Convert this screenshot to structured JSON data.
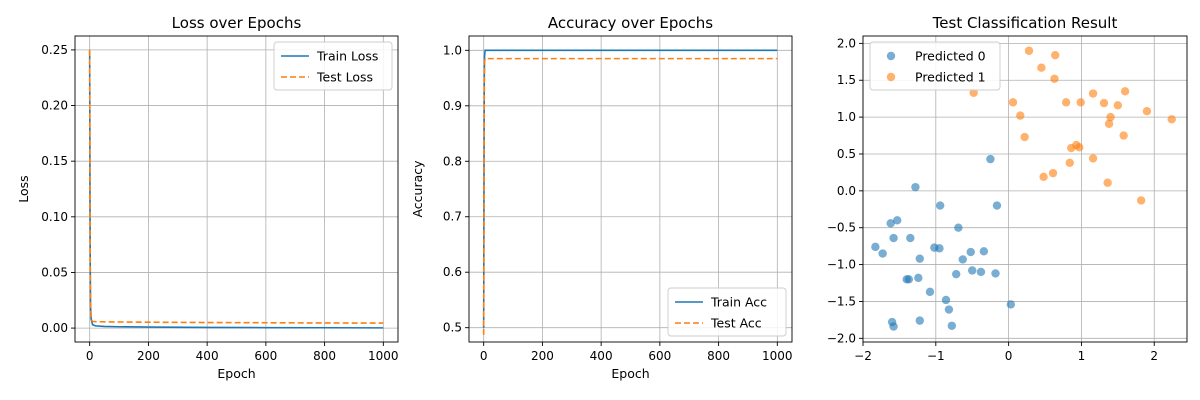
{
  "colors": {
    "blue": "#1f77b4",
    "orange": "#ff7f0e",
    "grid": "#b0b0b0"
  },
  "chart_data": [
    {
      "type": "line",
      "title": "Loss over Epochs",
      "xlabel": "Epoch",
      "ylabel": "Loss",
      "xlim": [
        -50,
        1050
      ],
      "ylim": [
        -0.0125,
        0.2625
      ],
      "xticks": [
        0,
        200,
        400,
        600,
        800,
        1000
      ],
      "yticks": [
        0.0,
        0.05,
        0.1,
        0.15,
        0.2,
        0.25
      ],
      "xtick_labels": [
        "0",
        "200",
        "400",
        "600",
        "800",
        "1000"
      ],
      "ytick_labels": [
        "0.00",
        "0.05",
        "0.10",
        "0.15",
        "0.20",
        "0.25"
      ],
      "grid": true,
      "legend": "top-right",
      "series": [
        {
          "name": "Train Loss",
          "style": "solid",
          "color": "#1f77b4",
          "x": [
            0,
            1,
            2,
            3,
            5,
            10,
            20,
            50,
            100,
            200,
            400,
            600,
            800,
            1000
          ],
          "y": [
            0.25,
            0.12,
            0.05,
            0.02,
            0.008,
            0.003,
            0.002,
            0.0015,
            0.0012,
            0.0009,
            0.0006,
            0.0004,
            0.0003,
            0.0002
          ]
        },
        {
          "name": "Test Loss",
          "style": "dashed",
          "color": "#ff7f0e",
          "x": [
            0,
            1,
            2,
            3,
            5,
            10,
            20,
            50,
            100,
            200,
            400,
            600,
            800,
            1000
          ],
          "y": [
            0.25,
            0.12,
            0.05,
            0.02,
            0.008,
            0.006,
            0.0058,
            0.0056,
            0.0055,
            0.0053,
            0.005,
            0.0048,
            0.0046,
            0.0045
          ]
        }
      ]
    },
    {
      "type": "line",
      "title": "Accuracy over Epochs",
      "xlabel": "Epoch",
      "ylabel": "Accuracy",
      "xlim": [
        -50,
        1050
      ],
      "ylim": [
        0.4742,
        1.0258
      ],
      "xticks": [
        0,
        200,
        400,
        600,
        800,
        1000
      ],
      "yticks": [
        0.5,
        0.6,
        0.7,
        0.8,
        0.9,
        1.0
      ],
      "xtick_labels": [
        "0",
        "200",
        "400",
        "600",
        "800",
        "1000"
      ],
      "ytick_labels": [
        "0.5",
        "0.6",
        "0.7",
        "0.8",
        "0.9",
        "1.0"
      ],
      "grid": true,
      "legend": "bottom-right",
      "series": [
        {
          "name": "Train Acc",
          "style": "solid",
          "color": "#1f77b4",
          "x": [
            0,
            1,
            2,
            3,
            5,
            10,
            1000
          ],
          "y": [
            0.5,
            0.75,
            0.95,
            0.99,
            1.0,
            1.0,
            1.0
          ]
        },
        {
          "name": "Test Acc",
          "style": "dashed",
          "color": "#ff7f0e",
          "x": [
            0,
            1,
            2,
            3,
            5,
            10,
            1000
          ],
          "y": [
            0.487,
            0.7,
            0.93,
            0.98,
            0.985,
            0.985,
            0.985
          ]
        }
      ]
    },
    {
      "type": "scatter",
      "title": "Test Classification Result",
      "xlim": [
        -2.0,
        2.45
      ],
      "ylim": [
        -2.05,
        2.1
      ],
      "xticks": [
        -2,
        -1,
        0,
        1,
        2
      ],
      "yticks": [
        -2.0,
        -1.5,
        -1.0,
        -0.5,
        0.0,
        0.5,
        1.0,
        1.5,
        2.0
      ],
      "xtick_labels": [
        "−2",
        "−1",
        "0",
        "1",
        "2"
      ],
      "ytick_labels": [
        "−2.0",
        "−1.5",
        "−1.0",
        "−0.5",
        "0.0",
        "0.5",
        "1.0",
        "1.5",
        "2.0"
      ],
      "grid": true,
      "legend": "top-left",
      "series": [
        {
          "name": "Predicted 0",
          "color": "#1f77b4",
          "points": [
            [
              -1.83,
              -0.76
            ],
            [
              -1.73,
              -0.85
            ],
            [
              -1.62,
              -0.44
            ],
            [
              -1.58,
              -0.64
            ],
            [
              -1.53,
              -0.4
            ],
            [
              -1.6,
              -1.78
            ],
            [
              -1.58,
              -1.84
            ],
            [
              -1.4,
              -1.2
            ],
            [
              -1.37,
              -1.2
            ],
            [
              -1.35,
              -0.64
            ],
            [
              -1.28,
              0.05
            ],
            [
              -1.24,
              -1.18
            ],
            [
              -1.22,
              -0.92
            ],
            [
              -1.22,
              -1.76
            ],
            [
              -1.08,
              -1.37
            ],
            [
              -1.02,
              -0.77
            ],
            [
              -0.95,
              -0.78
            ],
            [
              -0.94,
              -0.2
            ],
            [
              -0.86,
              -1.48
            ],
            [
              -0.82,
              -1.61
            ],
            [
              -0.78,
              -1.83
            ],
            [
              -0.72,
              -1.13
            ],
            [
              -0.69,
              -0.5
            ],
            [
              -0.63,
              -0.93
            ],
            [
              -0.52,
              -0.83
            ],
            [
              -0.5,
              -1.08
            ],
            [
              -0.38,
              -1.1
            ],
            [
              -0.34,
              -0.82
            ],
            [
              -0.25,
              0.43
            ],
            [
              -0.18,
              -1.12
            ],
            [
              -0.16,
              -0.2
            ],
            [
              0.03,
              -1.54
            ]
          ]
        },
        {
          "name": "Predicted 1",
          "color": "#ff7f0e",
          "points": [
            [
              -0.48,
              1.33
            ],
            [
              0.06,
              1.2
            ],
            [
              0.16,
              1.02
            ],
            [
              0.22,
              0.73
            ],
            [
              0.28,
              1.9
            ],
            [
              0.45,
              1.67
            ],
            [
              0.48,
              0.19
            ],
            [
              0.61,
              0.24
            ],
            [
              0.63,
              1.52
            ],
            [
              0.64,
              1.84
            ],
            [
              0.79,
              1.2
            ],
            [
              0.84,
              0.38
            ],
            [
              0.86,
              0.58
            ],
            [
              0.93,
              0.62
            ],
            [
              0.97,
              0.59
            ],
            [
              0.99,
              1.2
            ],
            [
              1.16,
              0.44
            ],
            [
              1.16,
              1.32
            ],
            [
              1.31,
              1.19
            ],
            [
              1.36,
              0.11
            ],
            [
              1.38,
              0.91
            ],
            [
              1.4,
              1.0
            ],
            [
              1.5,
              1.16
            ],
            [
              1.58,
              0.75
            ],
            [
              1.6,
              1.35
            ],
            [
              1.82,
              -0.13
            ],
            [
              1.9,
              1.08
            ],
            [
              2.24,
              0.97
            ]
          ]
        }
      ]
    }
  ]
}
